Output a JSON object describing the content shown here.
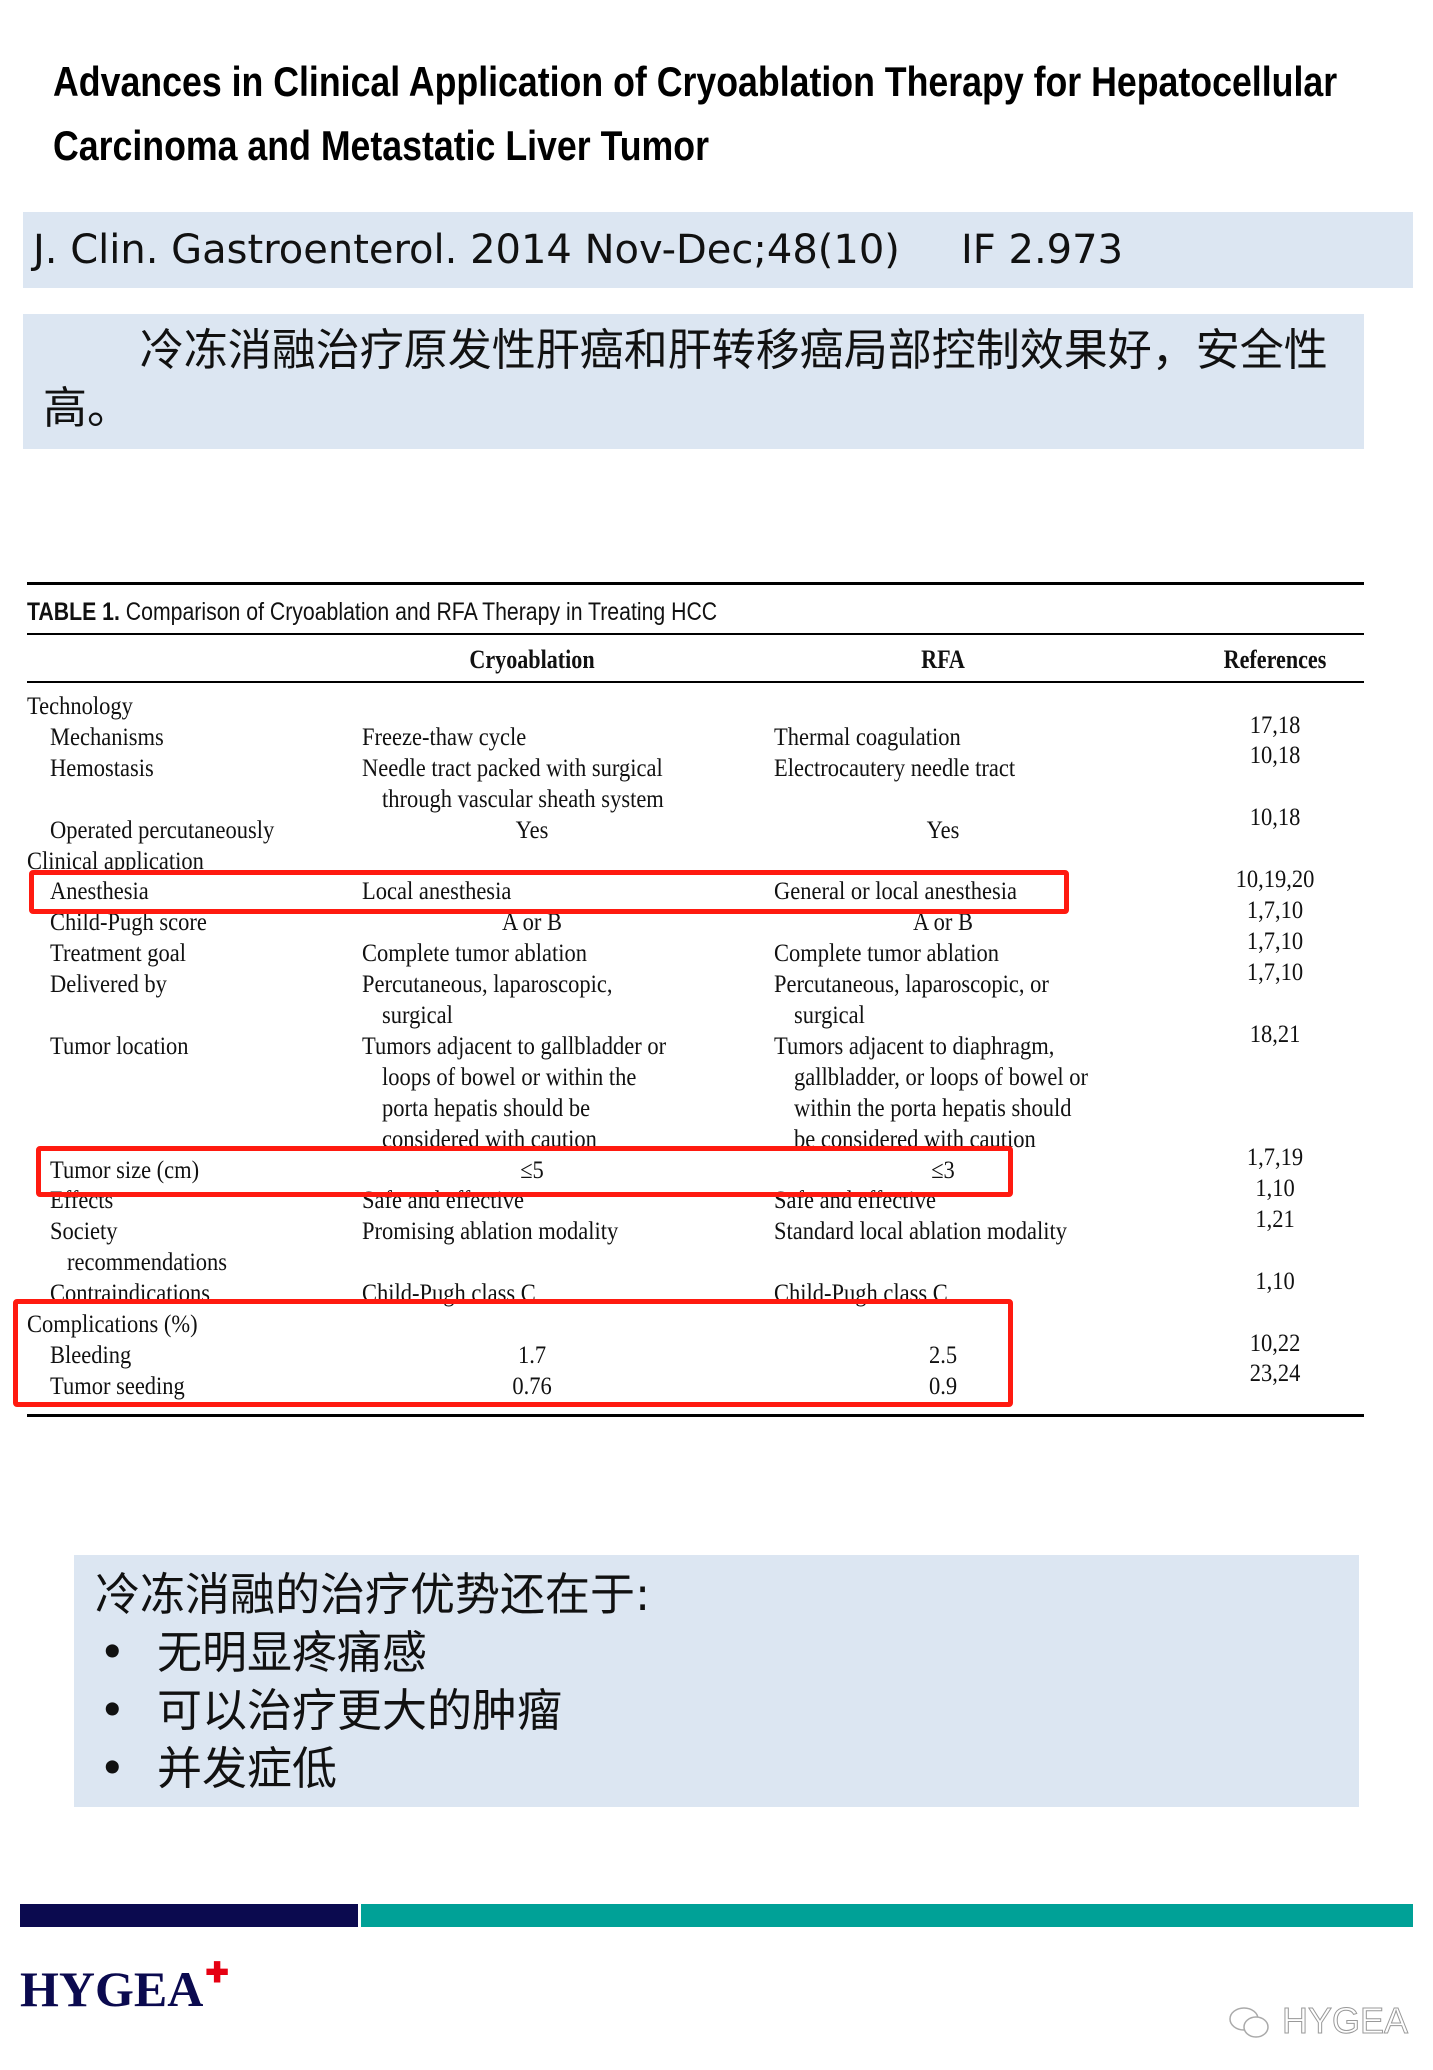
{
  "title": "Advances in Clinical Application of Cryoablation Therapy for Hepatocellular Carcinoma and Metastatic Liver Tumor",
  "journal": {
    "citation": "J. Clin. Gastroenterol. 2014 Nov-Dec;48(10)",
    "impact_factor": "IF 2.973"
  },
  "summary": "冷冻消融治疗原发性肝癌和肝转移癌局部控制效果好，安全性高。",
  "table": {
    "caption_label": "TABLE 1.",
    "caption": "Comparison of Cryoablation and RFA Therapy in Treating HCC",
    "headers": {
      "cryo": "Cryoablation",
      "rfa": "RFA",
      "refs": "References"
    },
    "lines": [
      {
        "label": "Technology",
        "level": 0
      },
      {
        "label": "Mechanisms",
        "level": 1,
        "cryo": "Freeze-thaw cycle",
        "rfa": "Thermal coagulation"
      },
      {
        "label": "Hemostasis",
        "level": 1,
        "cryo": "Needle tract packed with surgical",
        "rfa": "Electrocautery needle tract"
      },
      {
        "cryo": "through vascular sheath system",
        "cryo_indent": true
      },
      {
        "label": "Operated percutaneously",
        "level": 1,
        "cryo": "Yes",
        "rfa": "Yes",
        "center": true
      },
      {
        "label": "Clinical application",
        "level": 0
      },
      {
        "label": "Anesthesia",
        "level": 1,
        "cryo": "Local anesthesia",
        "rfa": "General or local anesthesia"
      },
      {
        "label": "Child-Pugh score",
        "level": 1,
        "cryo": "A or B",
        "rfa": "A or B",
        "center": true
      },
      {
        "label": "Treatment goal",
        "level": 1,
        "cryo": "Complete tumor ablation",
        "rfa": "Complete tumor ablation"
      },
      {
        "label": "Delivered by",
        "level": 1,
        "cryo": "Percutaneous, laparoscopic,",
        "rfa": "Percutaneous, laparoscopic, or"
      },
      {
        "cryo": "surgical",
        "rfa": "surgical",
        "cryo_indent": true,
        "rfa_indent": true
      },
      {
        "label": "Tumor location",
        "level": 1,
        "cryo": "Tumors adjacent to gallbladder or",
        "rfa": "Tumors adjacent to diaphragm,"
      },
      {
        "cryo": "loops of bowel or within the",
        "rfa": "gallbladder, or loops of bowel or",
        "cryo_indent": true,
        "rfa_indent": true
      },
      {
        "cryo": "porta hepatis should be",
        "rfa": "within the porta hepatis should",
        "cryo_indent": true,
        "rfa_indent": true
      },
      {
        "cryo": "considered with caution",
        "rfa": "be considered with caution",
        "cryo_indent": true,
        "rfa_indent": true
      },
      {
        "label": "Tumor size (cm)",
        "level": 1,
        "cryo": "≤5",
        "rfa": "≤3",
        "center": true
      },
      {
        "label": "Effects",
        "level": 1,
        "cryo": "Safe and effective",
        "rfa": "Safe and effective"
      },
      {
        "label": "Society",
        "level": 1,
        "cryo": "Promising ablation modality",
        "rfa": "Standard local ablation modality"
      },
      {
        "label": "recommendations",
        "level": 2
      },
      {
        "label": "Contraindications",
        "level": 1,
        "cryo": "Child-Pugh class C",
        "rfa": "Child-Pugh class C"
      },
      {
        "label": "Complications (%)",
        "level": 0
      },
      {
        "label": "Bleeding",
        "level": 1,
        "cryo": "1.7",
        "rfa": "2.5",
        "center": true
      },
      {
        "label": "Tumor seeding",
        "level": 1,
        "cryo": "0.76",
        "rfa": "0.9",
        "center": true
      }
    ],
    "references": [
      "17,18",
      "10,18",
      "",
      "10,18",
      "",
      "10,19,20",
      "1,7,10",
      "1,7,10",
      "1,7,10",
      "",
      "18,21",
      "",
      "",
      "",
      "1,7,19",
      "1,10",
      "1,21",
      "",
      "1,10",
      "",
      "10,22",
      "23,24",
      ""
    ],
    "highlight_color": "#ff1a10"
  },
  "advantages": {
    "heading": "冷冻消融的治疗优势还在于:",
    "items": [
      "无明显疼痛感",
      "可以治疗更大的肿瘤",
      "并发症低"
    ]
  },
  "footer": {
    "logo": "HYGEA",
    "watermark": "HYGEA",
    "colors": {
      "navy": "#0b0a4f",
      "teal": "#00a197"
    }
  }
}
